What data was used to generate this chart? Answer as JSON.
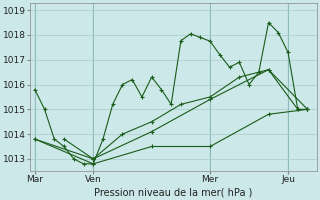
{
  "title": "Pression niveau de la mer( hPa )",
  "bg_color": "#cce8e8",
  "plot_bg_color": "#cce8e8",
  "grid_color": "#aacccc",
  "line_color": "#1a5c1a",
  "ylim": [
    1012.5,
    1019.3
  ],
  "yticks": [
    1013,
    1014,
    1015,
    1016,
    1017,
    1018,
    1019
  ],
  "xtick_labels": [
    "Mar",
    "Ven",
    "Mer",
    "Jeu"
  ],
  "xtick_positions": [
    0,
    6,
    18,
    26
  ],
  "vline_positions": [
    0,
    6,
    18,
    26
  ],
  "series1_x": [
    0,
    1,
    2,
    3,
    4,
    5,
    6,
    7,
    8,
    9,
    10,
    11,
    12,
    13,
    14,
    15,
    16,
    17,
    18,
    19,
    20,
    21,
    22,
    23,
    24,
    25,
    26,
    27,
    28
  ],
  "series1_y": [
    1015.8,
    1015.0,
    1013.8,
    1013.5,
    1013.0,
    1012.8,
    1012.8,
    1013.8,
    1015.2,
    1016.0,
    1016.2,
    1015.5,
    1016.3,
    1015.8,
    1015.2,
    1017.77,
    1018.05,
    1017.9,
    1017.75,
    1017.2,
    1016.7,
    1016.9,
    1016.0,
    1016.5,
    1018.5,
    1018.1,
    1017.3,
    1015.0,
    1015.0
  ],
  "series2_x": [
    3,
    6,
    9,
    12,
    15,
    18,
    21,
    24,
    27
  ],
  "series2_y": [
    1013.8,
    1013.0,
    1014.0,
    1014.5,
    1015.2,
    1015.5,
    1016.3,
    1016.6,
    1015.0
  ],
  "series3_x": [
    0,
    6,
    12,
    18,
    24,
    28
  ],
  "series3_y": [
    1013.8,
    1013.0,
    1014.1,
    1015.4,
    1016.6,
    1015.0
  ],
  "series4_x": [
    0,
    6,
    12,
    18,
    24,
    28
  ],
  "series4_y": [
    1013.8,
    1012.8,
    1013.5,
    1013.5,
    1014.8,
    1015.0
  ],
  "xlim": [
    -0.5,
    29
  ]
}
